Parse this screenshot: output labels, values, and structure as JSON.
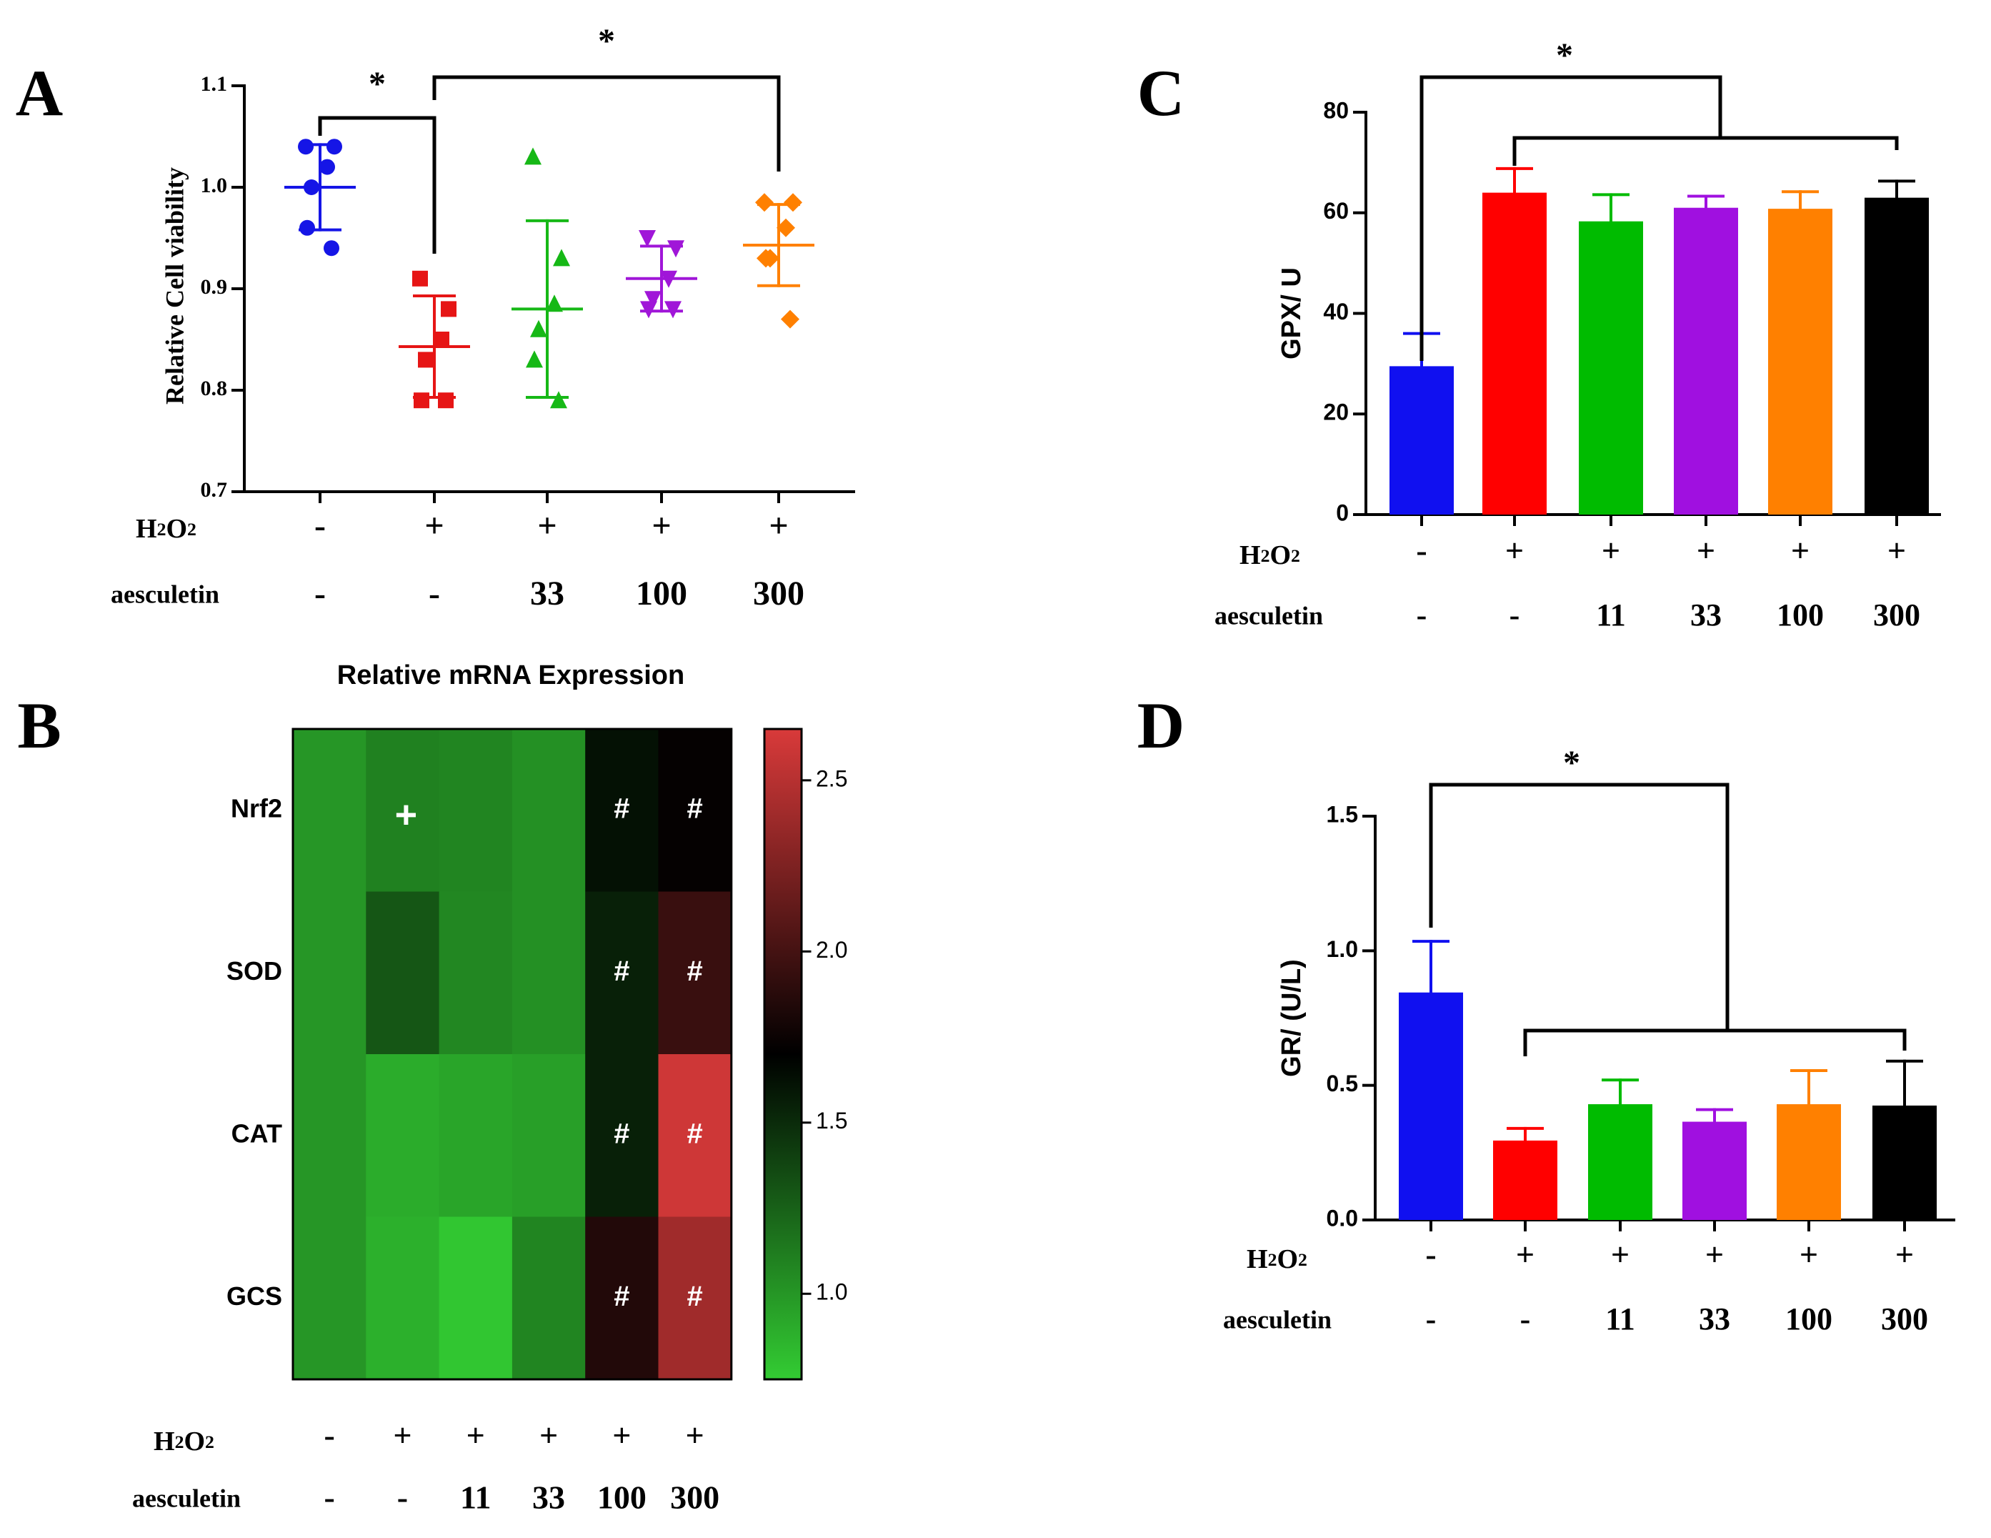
{
  "chart_data": [
    {
      "panel": "A",
      "type": "scatter",
      "ylabel": "Relative Cell viability",
      "ylim": [
        0.7,
        1.1
      ],
      "yticks": [
        "0.7",
        "0.8",
        "0.9",
        "1.0",
        "1.1"
      ],
      "row_labels": [
        "H2O2",
        "aesculetin"
      ],
      "groups": [
        {
          "h2o2": "-",
          "aesculetin": "-",
          "color": "#1515e6",
          "marker": "circle",
          "points": [
            1.04,
            1.04,
            1.02,
            1.0,
            0.96,
            0.94
          ],
          "mean": 1.0,
          "sd_low": 0.958,
          "sd_high": 1.042
        },
        {
          "h2o2": "+",
          "aesculetin": "-",
          "color": "#e61515",
          "marker": "square",
          "points": [
            0.91,
            0.88,
            0.85,
            0.83,
            0.79,
            0.79
          ],
          "mean": 0.843,
          "sd_low": 0.793,
          "sd_high": 0.893
        },
        {
          "h2o2": "+",
          "aesculetin": "33",
          "color": "#16b816",
          "marker": "triangle-up",
          "points": [
            1.03,
            0.93,
            0.885,
            0.86,
            0.83,
            0.79
          ],
          "mean": 0.88,
          "sd_low": 0.793,
          "sd_high": 0.967
        },
        {
          "h2o2": "+",
          "aesculetin": "100",
          "color": "#a016d8",
          "marker": "triangle-down",
          "points": [
            0.95,
            0.94,
            0.91,
            0.89,
            0.88,
            0.88
          ],
          "mean": 0.91,
          "sd_low": 0.878,
          "sd_high": 0.942
        },
        {
          "h2o2": "+",
          "aesculetin": "300",
          "color": "#ff8000",
          "marker": "diamond",
          "points": [
            0.985,
            0.985,
            0.96,
            0.93,
            0.93,
            0.87
          ],
          "mean": 0.943,
          "sd_low": 0.903,
          "sd_high": 0.983
        }
      ],
      "significance": [
        {
          "from": 0,
          "to": 1,
          "label": "*"
        },
        {
          "from": 1,
          "to": 4,
          "label": "*"
        }
      ]
    },
    {
      "panel": "B",
      "type": "heatmap",
      "title": "Relative mRNA Expression",
      "rows": [
        "Nrf2",
        "SOD",
        "CAT",
        "GCS"
      ],
      "columns_h2o2": [
        "-",
        "+",
        "+",
        "+",
        "+",
        "+"
      ],
      "columns_aesculetin": [
        "-",
        "-",
        "11",
        "33",
        "100",
        "300"
      ],
      "values": [
        [
          1.0,
          1.1,
          1.08,
          1.03,
          1.62,
          1.72
        ],
        [
          1.0,
          1.3,
          1.07,
          1.03,
          1.55,
          1.95
        ],
        [
          1.0,
          0.9,
          0.93,
          0.96,
          1.55,
          2.6
        ],
        [
          1.0,
          0.88,
          0.78,
          1.08,
          1.85,
          2.4
        ]
      ],
      "marks": [
        [
          "",
          "+",
          "",
          "",
          "#",
          "#"
        ],
        [
          "",
          "",
          "",
          "",
          "#",
          "#"
        ],
        [
          "",
          "",
          "",
          "",
          "#",
          "#"
        ],
        [
          "",
          "",
          "",
          "",
          "#",
          "#"
        ]
      ],
      "colorbar_range": [
        0.75,
        2.65
      ],
      "colorbar_ticks": [
        "1.0",
        "1.5",
        "2.0",
        "2.5"
      ],
      "colormap": [
        "#33cc33",
        "#000000",
        "#d93a3a"
      ],
      "row_labels": [
        "H2O2",
        "aesculetin"
      ]
    },
    {
      "panel": "C",
      "type": "bar",
      "ylabel": "GPX/ U",
      "ylim": [
        0,
        80
      ],
      "yticks": [
        "0",
        "20",
        "40",
        "60",
        "80"
      ],
      "row_labels": [
        "H2O2",
        "aesculetin"
      ],
      "groups": [
        {
          "h2o2": "-",
          "aesculetin": "-",
          "color": "#1010f0",
          "value": 29.5,
          "err": 6.5
        },
        {
          "h2o2": "+",
          "aesculetin": "-",
          "color": "#ff0000",
          "value": 64,
          "err": 4.8
        },
        {
          "h2o2": "+",
          "aesculetin": "11",
          "color": "#00bb00",
          "value": 58.3,
          "err": 5.3
        },
        {
          "h2o2": "+",
          "aesculetin": "33",
          "color": "#a010e0",
          "value": 61,
          "err": 2.3
        },
        {
          "h2o2": "+",
          "aesculetin": "100",
          "color": "#ff8000",
          "value": 60.8,
          "err": 3.4
        },
        {
          "h2o2": "+",
          "aesculetin": "300",
          "color": "#000000",
          "value": 63,
          "err": 3.3
        }
      ],
      "significance": {
        "label": "*"
      }
    },
    {
      "panel": "D",
      "type": "bar",
      "ylabel": "GR/ (U/L)",
      "ylim": [
        0,
        1.5
      ],
      "yticks": [
        "0.0",
        "0.5",
        "1.0",
        "1.5"
      ],
      "row_labels": [
        "H2O2",
        "aesculetin"
      ],
      "groups": [
        {
          "h2o2": "-",
          "aesculetin": "-",
          "color": "#1010f0",
          "value": 0.845,
          "err": 0.19
        },
        {
          "h2o2": "+",
          "aesculetin": "-",
          "color": "#ff0000",
          "value": 0.295,
          "err": 0.045
        },
        {
          "h2o2": "+",
          "aesculetin": "11",
          "color": "#00bb00",
          "value": 0.43,
          "err": 0.09
        },
        {
          "h2o2": "+",
          "aesculetin": "33",
          "color": "#a010e0",
          "value": 0.365,
          "err": 0.045
        },
        {
          "h2o2": "+",
          "aesculetin": "100",
          "color": "#ff8000",
          "value": 0.43,
          "err": 0.125
        },
        {
          "h2o2": "+",
          "aesculetin": "300",
          "color": "#000000",
          "value": 0.425,
          "err": 0.165
        }
      ],
      "significance": {
        "label": "*"
      }
    }
  ]
}
